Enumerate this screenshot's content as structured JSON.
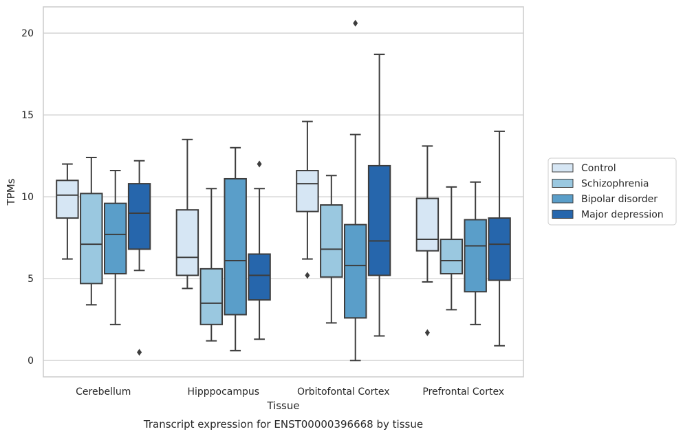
{
  "caption": "Transcript expression for ENST00000396668 by tissue",
  "chart_data": {
    "type": "box",
    "xlabel": "Tissue",
    "ylabel": "TPMs",
    "ylim": [
      -1,
      21.6
    ],
    "yticks": [
      0,
      5,
      10,
      15,
      20
    ],
    "grid": "horizontal",
    "legend_position": "right",
    "categories": [
      "Cerebellum",
      "Hipppocampus",
      "Orbitofontal Cortex",
      "Prefrontal Cortex"
    ],
    "series": [
      {
        "name": "Control",
        "color": "#d6e6f4",
        "boxes": [
          {
            "whislo": 6.2,
            "q1": 8.7,
            "med": 10.1,
            "q3": 11.0,
            "whishi": 12.0,
            "fliers": []
          },
          {
            "whislo": 4.4,
            "q1": 5.2,
            "med": 6.3,
            "q3": 9.2,
            "whishi": 13.5,
            "fliers": []
          },
          {
            "whislo": 6.2,
            "q1": 9.1,
            "med": 10.8,
            "q3": 11.6,
            "whishi": 14.6,
            "fliers": [
              5.2
            ]
          },
          {
            "whislo": 4.8,
            "q1": 6.7,
            "med": 7.4,
            "q3": 9.9,
            "whishi": 13.1,
            "fliers": [
              1.7
            ]
          }
        ]
      },
      {
        "name": "Schizophrenia",
        "color": "#9ac8e0",
        "boxes": [
          {
            "whislo": 3.4,
            "q1": 4.7,
            "med": 7.1,
            "q3": 10.2,
            "whishi": 12.4,
            "fliers": []
          },
          {
            "whislo": 1.2,
            "q1": 2.2,
            "med": 3.5,
            "q3": 5.6,
            "whishi": 10.5,
            "fliers": []
          },
          {
            "whislo": 2.3,
            "q1": 5.1,
            "med": 6.8,
            "q3": 9.5,
            "whishi": 11.3,
            "fliers": []
          },
          {
            "whislo": 3.1,
            "q1": 5.3,
            "med": 6.1,
            "q3": 7.4,
            "whishi": 10.6,
            "fliers": []
          }
        ]
      },
      {
        "name": "Bipolar disorder",
        "color": "#5a9ec9",
        "boxes": [
          {
            "whislo": 2.2,
            "q1": 5.3,
            "med": 7.7,
            "q3": 9.6,
            "whishi": 11.6,
            "fliers": []
          },
          {
            "whislo": 0.6,
            "q1": 2.8,
            "med": 6.1,
            "q3": 11.1,
            "whishi": 13.0,
            "fliers": []
          },
          {
            "whislo": 0.0,
            "q1": 2.6,
            "med": 5.8,
            "q3": 8.3,
            "whishi": 13.8,
            "fliers": [
              20.6
            ]
          },
          {
            "whislo": 2.2,
            "q1": 4.2,
            "med": 7.0,
            "q3": 8.6,
            "whishi": 10.9,
            "fliers": []
          }
        ]
      },
      {
        "name": "Major depression",
        "color": "#2666ac",
        "boxes": [
          {
            "whislo": 5.5,
            "q1": 6.8,
            "med": 9.0,
            "q3": 10.8,
            "whishi": 12.2,
            "fliers": [
              0.5
            ]
          },
          {
            "whislo": 1.3,
            "q1": 3.7,
            "med": 5.2,
            "q3": 6.5,
            "whishi": 10.5,
            "fliers": [
              12.0
            ]
          },
          {
            "whislo": 1.5,
            "q1": 5.2,
            "med": 7.3,
            "q3": 11.9,
            "whishi": 18.7,
            "fliers": []
          },
          {
            "whislo": 0.9,
            "q1": 4.9,
            "med": 7.1,
            "q3": 8.7,
            "whishi": 14.0,
            "fliers": []
          }
        ]
      }
    ]
  }
}
